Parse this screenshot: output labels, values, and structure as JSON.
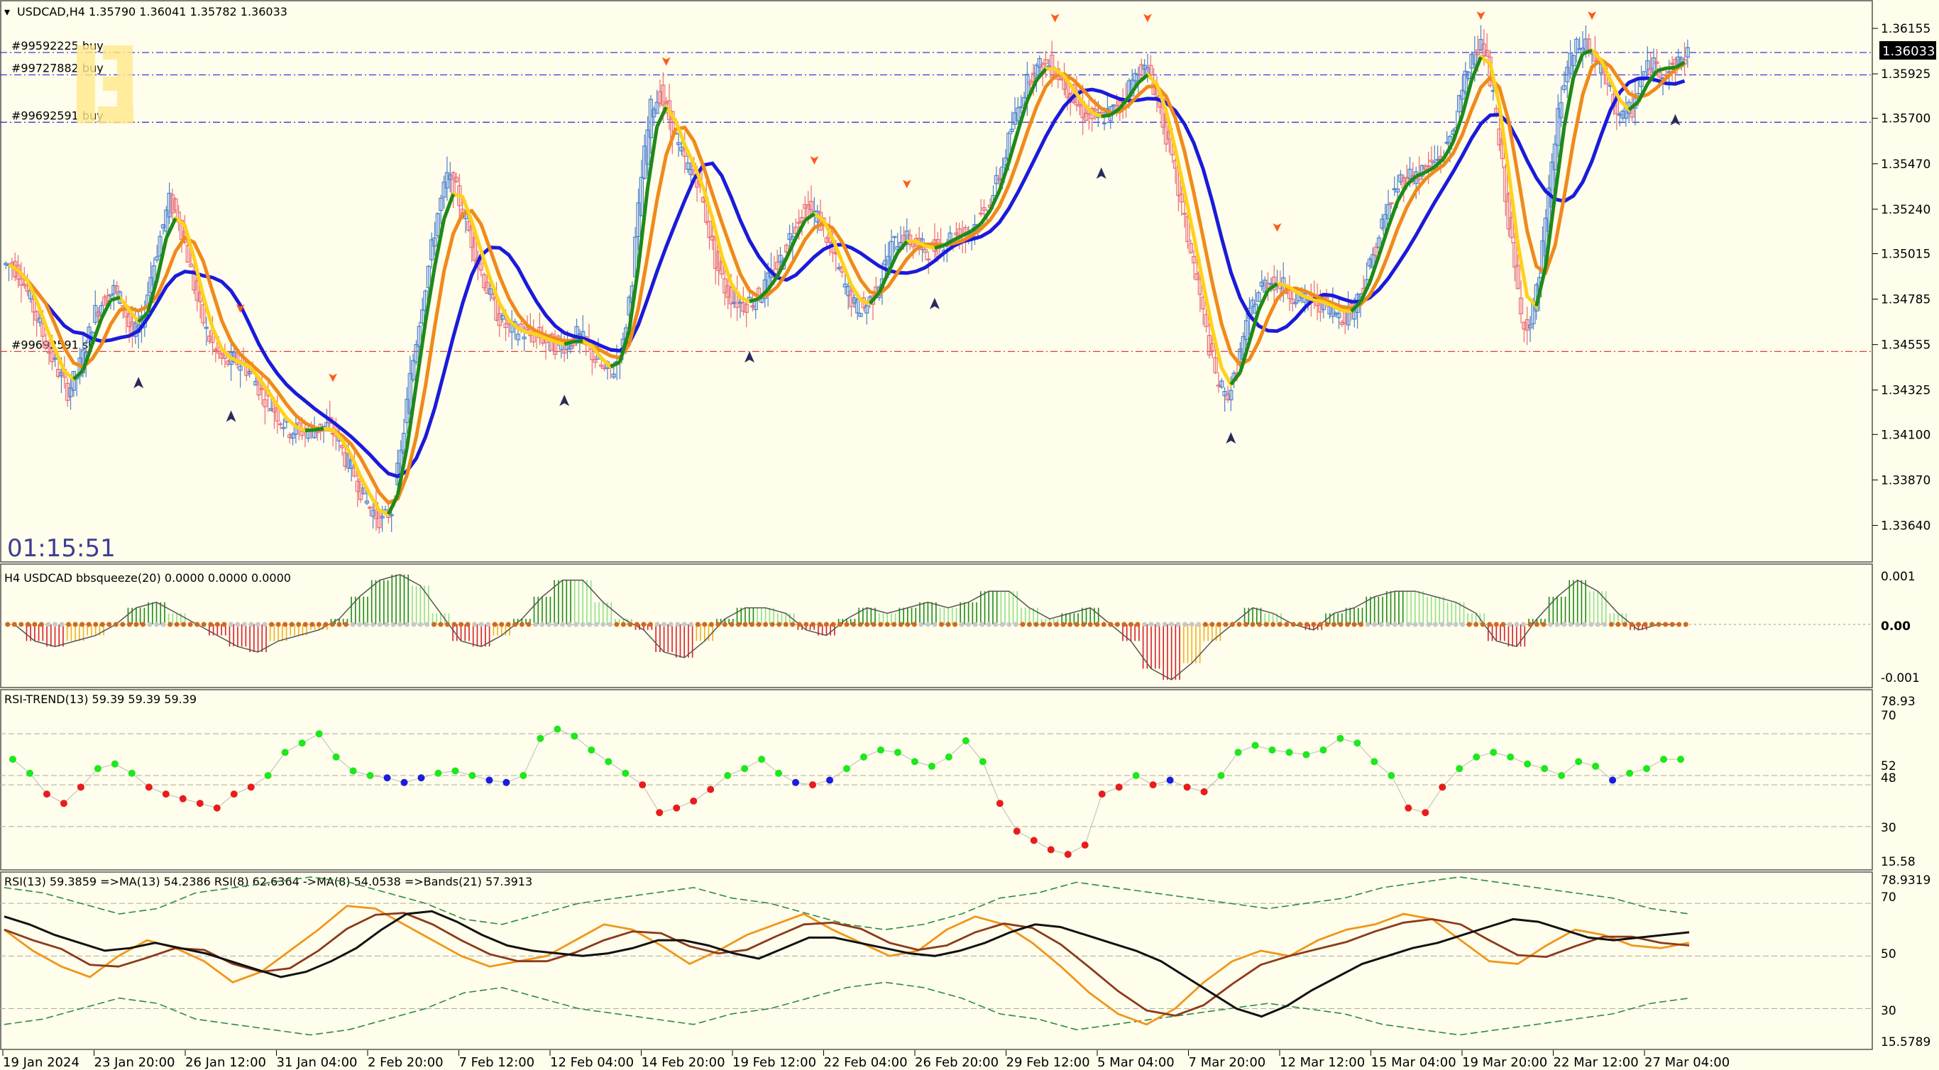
{
  "window": {
    "symbol_header": "USDCAD,H4  1.35790  1.36041  1.35782  1.36033",
    "countdown": "01:15:51",
    "current_price": "1.36033"
  },
  "orders": [
    {
      "label": "#99592225 buy",
      "price": 1.36033
    },
    {
      "label": "#99727882 buy",
      "price": 1.3592
    },
    {
      "label": "#99692591 buy",
      "price": 1.3568
    },
    {
      "label": "#99692591 sl",
      "price": 1.3452
    }
  ],
  "main_axis": {
    "ticks": [
      "1.36155",
      "1.35925",
      "1.35700",
      "1.35470",
      "1.35240",
      "1.35015",
      "1.34785",
      "1.34555",
      "1.34325",
      "1.34100",
      "1.33870",
      "1.33640"
    ],
    "range": [
      1.3348,
      1.3627
    ]
  },
  "panels": {
    "bbsqueeze": {
      "title": "H4 USDCAD bbsqueeze(20) 0.0000 0.0000 0.0000",
      "ticks": [
        "0.001",
        "0.00",
        "-0.001"
      ]
    },
    "rsi_trend": {
      "title": "RSI-TREND(13) 59.39 59.39 59.39",
      "ticks": [
        "78.93",
        "70",
        "52",
        "48",
        "30",
        "15.58"
      ]
    },
    "rsi": {
      "title": "RSI(13) 59.3859  =>MA(13) 54.2386  RSI(8) 62.6364  ->MA(8) 54.0538  =>Bands(21) 57.3913",
      "ticks": [
        "78.9319",
        "70",
        "50",
        "30",
        "15.5789"
      ]
    }
  },
  "time_axis": [
    "19 Jan 2024",
    "23 Jan 20:00",
    "26 Jan 12:00",
    "31 Jan 04:00",
    "2 Feb 20:00",
    "7 Feb 12:00",
    "12 Feb 04:00",
    "14 Feb 20:00",
    "19 Feb 12:00",
    "22 Feb 04:00",
    "26 Feb 20:00",
    "29 Feb 12:00",
    "5 Mar 04:00",
    "7 Mar 20:00",
    "12 Mar 12:00",
    "15 Mar 04:00",
    "19 Mar 20:00",
    "22 Mar 12:00",
    "27 Mar 04:00"
  ],
  "colors": {
    "background": "#fffdeb",
    "bull_candle": "#4a7fd0",
    "bear_candle": "#e86a78",
    "ma_blue": "#1a1adc",
    "ma_orange": "#f08a1c",
    "ma_yellow": "#ffd21a",
    "ma_green": "#1c8a1c",
    "order_line": "#3a3ad8",
    "sl_line": "#e04040"
  },
  "chart_data": {
    "type": "line",
    "series": [
      {
        "name": "USDCAD,H4",
        "values": [
          1.3496,
          1.349,
          1.3478,
          1.3465,
          1.3452,
          1.3442,
          1.3432,
          1.344,
          1.3455,
          1.3472,
          1.3479,
          1.3483,
          1.3476,
          1.346,
          1.3465,
          1.349,
          1.351,
          1.3528,
          1.352,
          1.35,
          1.3478,
          1.3462,
          1.3452,
          1.3446,
          1.3448,
          1.3445,
          1.344,
          1.3431,
          1.3425,
          1.3418,
          1.3412,
          1.3412,
          1.3412,
          1.3413,
          1.3414,
          1.341,
          1.3398,
          1.339,
          1.3378,
          1.3371,
          1.3366,
          1.3372,
          1.34,
          1.3438,
          1.3468,
          1.3495,
          1.3522,
          1.354,
          1.3533,
          1.3518,
          1.3503,
          1.3488,
          1.3475,
          1.3466,
          1.3463,
          1.3462,
          1.346,
          1.346,
          1.3456,
          1.3455,
          1.3456,
          1.346,
          1.3456,
          1.3448,
          1.3442,
          1.3443,
          1.3455,
          1.349,
          1.354,
          1.3575,
          1.3582,
          1.357,
          1.3555,
          1.3545,
          1.354,
          1.352,
          1.3498,
          1.3484,
          1.3478,
          1.3476,
          1.3478,
          1.3482,
          1.349,
          1.3498,
          1.351,
          1.352,
          1.3525,
          1.352,
          1.351,
          1.3497,
          1.3485,
          1.3475,
          1.3474,
          1.348,
          1.3491,
          1.3505,
          1.351,
          1.3508,
          1.3505,
          1.3503,
          1.3505,
          1.3509,
          1.3511,
          1.3512,
          1.3516,
          1.3522,
          1.3532,
          1.3546,
          1.3565,
          1.358,
          1.3592,
          1.3596,
          1.3597,
          1.3592,
          1.3585,
          1.3577,
          1.3572,
          1.357,
          1.3571,
          1.3574,
          1.358,
          1.3589,
          1.3595,
          1.3592,
          1.3575,
          1.3555,
          1.3533,
          1.351,
          1.3488,
          1.3462,
          1.344,
          1.3429,
          1.3437,
          1.3458,
          1.3476,
          1.3485,
          1.3488,
          1.3486,
          1.3482,
          1.3479,
          1.3478,
          1.3477,
          1.3476,
          1.3472,
          1.347,
          1.3475,
          1.3486,
          1.35,
          1.3516,
          1.3529,
          1.3539,
          1.3541,
          1.3542,
          1.3545,
          1.3549,
          1.3555,
          1.357,
          1.359,
          1.3608,
          1.3605,
          1.358,
          1.3545,
          1.3505,
          1.347,
          1.3465,
          1.349,
          1.353,
          1.3572,
          1.3595,
          1.3605,
          1.3608,
          1.36,
          1.359,
          1.3578,
          1.357,
          1.3575,
          1.359,
          1.3597,
          1.3595,
          1.3594,
          1.3598,
          1.3603
        ]
      }
    ],
    "indicators": {
      "bbsqueeze": [
        0.0,
        -0.0003,
        -0.0004,
        -0.0003,
        -0.0002,
        0.0,
        0.0003,
        0.0004,
        0.0002,
        0.0,
        -0.0002,
        -0.0004,
        -0.0005,
        -0.0003,
        -0.0002,
        -0.0001,
        0.0001,
        0.0005,
        0.0008,
        0.0009,
        0.0007,
        0.0002,
        -0.0003,
        -0.0004,
        -0.0002,
        0.0001,
        0.0005,
        0.0008,
        0.0008,
        0.0004,
        0.0001,
        -0.0001,
        -0.0005,
        -0.0006,
        -0.0003,
        0.0001,
        0.0003,
        0.0003,
        0.0002,
        -0.0001,
        -0.0002,
        0.0001,
        0.0003,
        0.0002,
        0.0003,
        0.0004,
        0.0003,
        0.0004,
        0.0006,
        0.0006,
        0.0003,
        0.0001,
        0.0002,
        0.0003,
        0.0,
        -0.0003,
        -0.0008,
        -0.001,
        -0.0007,
        -0.0003,
        0.0,
        0.0003,
        0.0002,
        0.0,
        -0.0001,
        0.0002,
        0.0003,
        0.0005,
        0.0006,
        0.0006,
        0.0005,
        0.0004,
        0.0002,
        -0.0003,
        -0.0004,
        0.0001,
        0.0005,
        0.0008,
        0.0006,
        0.0002,
        -0.0001,
        0.0,
        0.0
      ],
      "rsi_trend": [
        59,
        53,
        44,
        40,
        47,
        55,
        57,
        53,
        47,
        44,
        42,
        40,
        38,
        44,
        47,
        52,
        62,
        66,
        70,
        60,
        54,
        52,
        51,
        49,
        51,
        53,
        54,
        52,
        50,
        49,
        52,
        68,
        72,
        69,
        63,
        58,
        53,
        48,
        36,
        38,
        41,
        46,
        52,
        55,
        59,
        53,
        49,
        48,
        50,
        55,
        60,
        63,
        62,
        58,
        56,
        60,
        67,
        58,
        40,
        28,
        24,
        20,
        18,
        22,
        44,
        47,
        52,
        48,
        50,
        47,
        45,
        52,
        62,
        65,
        63,
        62,
        61,
        63,
        68,
        66,
        58,
        52,
        38,
        36,
        47,
        55,
        60,
        62,
        60,
        57,
        55,
        52,
        58,
        56,
        50,
        53,
        55,
        59,
        59
      ],
      "rsi13": [
        65,
        62,
        58,
        55,
        52,
        53,
        55,
        53,
        51,
        48,
        45,
        42,
        44,
        48,
        53,
        60,
        66,
        67,
        63,
        58,
        54,
        52,
        51,
        50,
        51,
        53,
        56,
        56,
        54,
        51,
        49,
        53,
        57,
        57,
        55,
        53,
        51,
        50,
        52,
        55,
        59,
        62,
        61,
        58,
        55,
        52,
        48,
        42,
        36,
        30,
        27,
        31,
        37,
        42,
        47,
        50,
        53,
        55,
        58,
        61,
        64,
        63,
        60,
        57,
        56,
        57,
        58,
        59
      ],
      "rsi8": [
        60,
        52,
        46,
        42,
        50,
        56,
        53,
        48,
        40,
        44,
        52,
        60,
        69,
        68,
        62,
        56,
        50,
        46,
        48,
        50,
        56,
        62,
        60,
        54,
        47,
        52,
        58,
        62,
        66,
        60,
        55,
        50,
        52,
        60,
        65,
        62,
        55,
        46,
        36,
        28,
        24,
        30,
        40,
        48,
        52,
        50,
        56,
        60,
        62,
        66,
        64,
        56,
        48,
        47,
        54,
        60,
        58,
        54,
        53,
        55
      ],
      "ma_bands_upper": [
        76,
        74,
        70,
        66,
        68,
        74,
        76,
        78,
        80,
        78,
        74,
        70,
        64,
        62,
        66,
        70,
        72,
        74,
        76,
        72,
        70,
        66,
        62,
        60,
        62,
        66,
        72,
        74,
        78,
        76,
        74,
        72,
        70,
        68,
        70,
        72,
        76,
        78,
        80,
        78,
        76,
        74,
        72,
        68,
        66
      ]
    }
  }
}
